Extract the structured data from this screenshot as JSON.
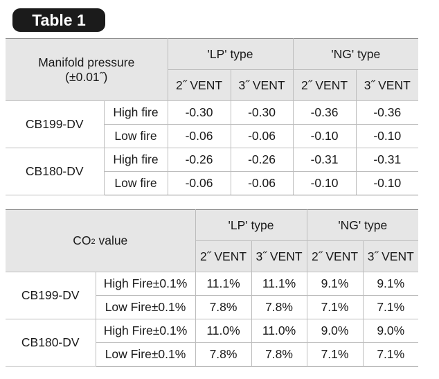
{
  "badge": {
    "label": "Table 1"
  },
  "table1": {
    "corner_line1": "Manifold pressure",
    "corner_line2": "(±0.01˝)",
    "group_lp": "'LP' type",
    "group_ng": "'NG' type",
    "vent_2": "2˝ VENT",
    "vent_3": "3˝ VENT",
    "rows": [
      {
        "model": "CB199-DV",
        "fire": "High fire",
        "values": [
          "-0.30",
          "-0.30",
          "-0.36",
          "-0.36"
        ]
      },
      {
        "model": "CB199-DV",
        "fire": "Low fire",
        "values": [
          "-0.06",
          "-0.06",
          "-0.10",
          "-0.10"
        ]
      },
      {
        "model": "CB180-DV",
        "fire": "High fire",
        "values": [
          "-0.26",
          "-0.26",
          "-0.31",
          "-0.31"
        ]
      },
      {
        "model": "CB180-DV",
        "fire": "Low fire",
        "values": [
          "-0.06",
          "-0.06",
          "-0.10",
          "-0.10"
        ]
      }
    ]
  },
  "table2": {
    "corner_co": "CO",
    "corner_sub": "2",
    "corner_rest": " value",
    "group_lp": "'LP' type",
    "group_ng": "'NG' type",
    "vent_2": "2˝ VENT",
    "vent_3": "3˝ VENT",
    "rows": [
      {
        "model": "CB199-DV",
        "fire": "High Fire±0.1%",
        "values": [
          "11.1%",
          "11.1%",
          "9.1%",
          "9.1%"
        ]
      },
      {
        "model": "CB199-DV",
        "fire": "Low Fire±0.1%",
        "values": [
          "7.8%",
          "7.8%",
          "7.1%",
          "7.1%"
        ]
      },
      {
        "model": "CB180-DV",
        "fire": "High Fire±0.1%",
        "values": [
          "11.0%",
          "11.0%",
          "9.0%",
          "9.0%"
        ]
      },
      {
        "model": "CB180-DV",
        "fire": "Low Fire±0.1%",
        "values": [
          "7.8%",
          "7.8%",
          "7.1%",
          "7.1%"
        ]
      }
    ]
  }
}
